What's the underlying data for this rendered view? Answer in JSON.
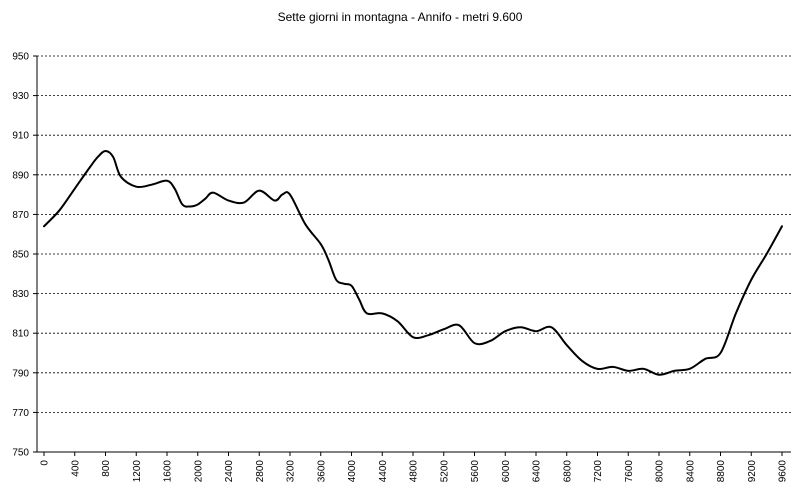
{
  "chart_data": {
    "type": "line",
    "title": "Sette giorni in montagna - Annifo - metri 9.600",
    "xlabel": "",
    "ylabel": "",
    "xlim": [
      0,
      9600
    ],
    "ylim": [
      750,
      950
    ],
    "y_ticks": [
      750,
      770,
      790,
      810,
      830,
      850,
      870,
      890,
      910,
      930,
      950
    ],
    "x_ticks": [
      0,
      400,
      800,
      1200,
      1600,
      2000,
      2400,
      2800,
      3200,
      3600,
      4000,
      4400,
      4800,
      5200,
      5600,
      6000,
      6400,
      6800,
      7200,
      7600,
      8000,
      8400,
      8800,
      9200,
      9600
    ],
    "grid": "horizontal dashed",
    "legend": "none",
    "colors": {
      "line": "#000000",
      "grid": "#000000",
      "background": "#ffffff"
    },
    "series": [
      {
        "x": [
          0,
          200,
          400,
          600,
          700,
          800,
          900,
          1000,
          1200,
          1400,
          1600,
          1700,
          1800,
          1900,
          2000,
          2100,
          2200,
          2400,
          2600,
          2800,
          3000,
          3100,
          3200,
          3400,
          3600,
          3700,
          3800,
          3900,
          4000,
          4100,
          4200,
          4400,
          4600,
          4800,
          5000,
          5200,
          5400,
          5600,
          5800,
          6000,
          6200,
          6400,
          6600,
          6800,
          7000,
          7200,
          7400,
          7600,
          7800,
          8000,
          8200,
          8400,
          8600,
          8800,
          9000,
          9200,
          9400,
          9600
        ],
        "y": [
          864,
          872,
          883,
          894,
          899,
          902,
          899,
          889,
          884,
          885,
          887,
          883,
          875,
          874,
          875,
          878,
          881,
          877,
          876,
          882,
          877,
          880,
          880,
          865,
          855,
          847,
          837,
          835,
          834,
          827,
          820,
          820,
          816,
          808,
          809,
          812,
          814,
          805,
          806,
          811,
          813,
          811,
          813,
          804,
          796,
          792,
          793,
          791,
          792,
          789,
          791,
          792,
          797,
          800,
          820,
          837,
          850,
          864
        ]
      }
    ]
  }
}
